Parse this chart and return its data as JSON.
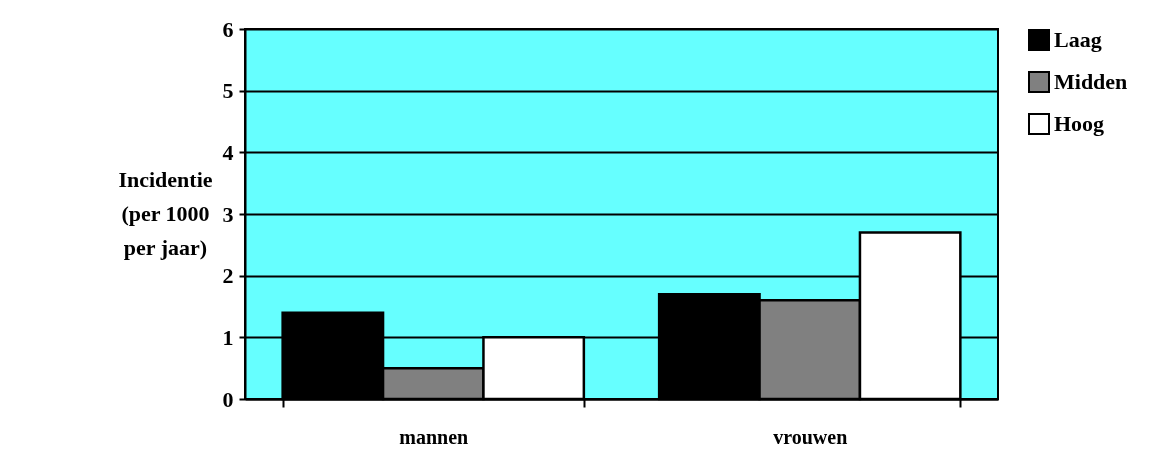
{
  "chart_data": {
    "type": "bar",
    "ylabel": "Incidentie\n(per 1000\nper jaar)",
    "categories": [
      "mannen",
      "vrouwen"
    ],
    "series": [
      {
        "name": "Laag",
        "color": "#000000",
        "values": [
          1.4,
          1.7
        ]
      },
      {
        "name": "Midden",
        "color": "#808080",
        "values": [
          0.5,
          1.6
        ]
      },
      {
        "name": "Hoog",
        "color": "#ffffff",
        "values": [
          1.0,
          2.7
        ]
      }
    ],
    "ylim": [
      0,
      6
    ],
    "yticks": [
      0,
      1,
      2,
      3,
      4,
      5,
      6
    ],
    "grid": "y",
    "legend": "right"
  }
}
